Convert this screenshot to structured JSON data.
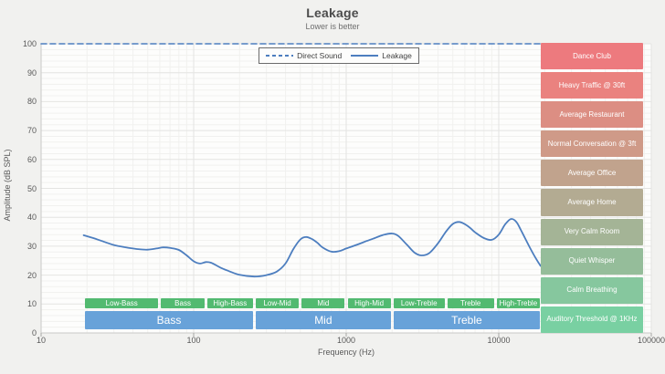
{
  "chart_data": {
    "type": "line",
    "title": "Leakage",
    "subtitle": "Lower is better",
    "xlabel": "Frequency (Hz)",
    "ylabel": "Amplitude (dB SPL)",
    "x_scale": "log",
    "xlim": [
      10,
      100000
    ],
    "x_ticks": [
      10,
      100,
      1000,
      10000,
      100000
    ],
    "ylim": [
      0,
      100
    ],
    "y_ticks": [
      0,
      10,
      20,
      30,
      40,
      50,
      60,
      70,
      80,
      90,
      100
    ],
    "grid": true,
    "legend_position": "top-center",
    "line_color": "#4d7ebf",
    "series": [
      {
        "name": "Direct Sound",
        "style": "dashed",
        "points": [
          [
            10,
            100
          ],
          [
            19500,
            100
          ]
        ]
      },
      {
        "name": "Leakage",
        "style": "solid",
        "points": [
          [
            19,
            33.8
          ],
          [
            22,
            32.8
          ],
          [
            25,
            31.8
          ],
          [
            30,
            30.4
          ],
          [
            35,
            29.7
          ],
          [
            40,
            29.2
          ],
          [
            45,
            28.9
          ],
          [
            50,
            28.8
          ],
          [
            57,
            29.2
          ],
          [
            63,
            29.6
          ],
          [
            70,
            29.4
          ],
          [
            80,
            28.7
          ],
          [
            90,
            26.8
          ],
          [
            100,
            24.8
          ],
          [
            110,
            24.0
          ],
          [
            120,
            24.5
          ],
          [
            130,
            24.3
          ],
          [
            150,
            22.6
          ],
          [
            170,
            21.4
          ],
          [
            200,
            20.1
          ],
          [
            250,
            19.5
          ],
          [
            300,
            20.0
          ],
          [
            350,
            21.2
          ],
          [
            400,
            24.0
          ],
          [
            450,
            29.0
          ],
          [
            500,
            32.3
          ],
          [
            545,
            33.2
          ],
          [
            600,
            32.4
          ],
          [
            650,
            31.1
          ],
          [
            700,
            29.6
          ],
          [
            800,
            28.1
          ],
          [
            900,
            28.3
          ],
          [
            1000,
            29.2
          ],
          [
            1150,
            30.3
          ],
          [
            1300,
            31.4
          ],
          [
            1500,
            32.6
          ],
          [
            1750,
            33.9
          ],
          [
            2000,
            34.4
          ],
          [
            2200,
            33.5
          ],
          [
            2500,
            30.5
          ],
          [
            2800,
            27.8
          ],
          [
            3100,
            26.8
          ],
          [
            3500,
            27.6
          ],
          [
            4000,
            31.0
          ],
          [
            4500,
            35.0
          ],
          [
            5000,
            37.7
          ],
          [
            5500,
            38.4
          ],
          [
            6000,
            37.6
          ],
          [
            6500,
            36.3
          ],
          [
            7000,
            34.8
          ],
          [
            8000,
            32.8
          ],
          [
            9000,
            32.2
          ],
          [
            10000,
            34.0
          ],
          [
            11000,
            37.5
          ],
          [
            12000,
            39.4
          ],
          [
            13000,
            38.5
          ],
          [
            14000,
            35.5
          ],
          [
            16000,
            29.5
          ],
          [
            17500,
            25.8
          ],
          [
            18800,
            23.2
          ]
        ]
      }
    ],
    "noise_levels": [
      {
        "label": "Dance Club",
        "db_range": [
          90,
          100
        ],
        "color": "#ed7a7e"
      },
      {
        "label": "Heavy Traffic @ 30ft",
        "db_range": [
          80,
          90
        ],
        "color": "#ea827f"
      },
      {
        "label": "Average Restaurant",
        "db_range": [
          70,
          80
        ],
        "color": "#dc8e83"
      },
      {
        "label": "Normal Conversation @ 3ft",
        "db_range": [
          60,
          70
        ],
        "color": "#cf9a88"
      },
      {
        "label": "Average Office",
        "db_range": [
          50,
          60
        ],
        "color": "#c1a38d"
      },
      {
        "label": "Average Home",
        "db_range": [
          40,
          50
        ],
        "color": "#b3ab92"
      },
      {
        "label": "Very Calm Room",
        "db_range": [
          30,
          40
        ],
        "color": "#a4b496"
      },
      {
        "label": "Quiet Whisper",
        "db_range": [
          20,
          30
        ],
        "color": "#95bd9a"
      },
      {
        "label": "Calm Breathing",
        "db_range": [
          10,
          20
        ],
        "color": "#86c79e"
      },
      {
        "label": "Auditory Threshold @ 1KHz",
        "db_range": [
          0,
          10
        ],
        "color": "#79d0a2"
      }
    ],
    "frequency_bands": {
      "tier2_color": "#52ba70",
      "tier1_color": "#68a2d9",
      "tier2": [
        {
          "label": "Low-Bass",
          "range": [
            19,
            60
          ]
        },
        {
          "label": "Bass",
          "range": [
            60,
            120
          ]
        },
        {
          "label": "High-Bass",
          "range": [
            120,
            250
          ]
        },
        {
          "label": "Low-Mid",
          "range": [
            250,
            500
          ]
        },
        {
          "label": "Mid",
          "range": [
            500,
            1000
          ]
        },
        {
          "label": "High-Mid",
          "range": [
            1000,
            2000
          ]
        },
        {
          "label": "Low-Treble",
          "range": [
            2000,
            4500
          ]
        },
        {
          "label": "Treble",
          "range": [
            4500,
            9500
          ]
        },
        {
          "label": "High-Treble",
          "range": [
            9500,
            19000
          ]
        }
      ],
      "tier1": [
        {
          "label": "Bass",
          "range": [
            19,
            250
          ]
        },
        {
          "label": "Mid",
          "range": [
            250,
            2000
          ]
        },
        {
          "label": "Treble",
          "range": [
            2000,
            19000
          ]
        }
      ]
    },
    "colors": {
      "grid_major": "#e4e4e2",
      "grid_minor": "#f1f1ef",
      "axis": "#c9c9c7",
      "text": "#595959",
      "title": "#4c4c4c",
      "subtitle": "#6e6e6e"
    }
  }
}
